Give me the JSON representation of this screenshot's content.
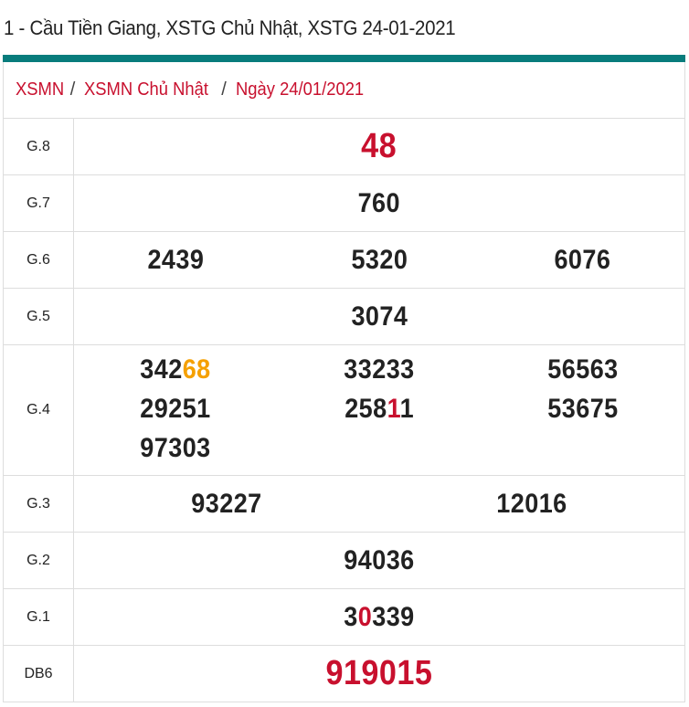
{
  "page_title": "1 - Cầu Tiền Giang, XSTG Chủ Nhật, XSTG 24-01-2021",
  "colors": {
    "accent_bar": "#087c7c",
    "red": "#c8102e",
    "orange": "#f5a000",
    "text": "#222222"
  },
  "breadcrumb": [
    {
      "label": "XSMN"
    },
    {
      "label": "XSMN Chủ Nhật"
    },
    {
      "label": "Ngày 24/01/2021"
    }
  ],
  "breadcrumb_separator": "/",
  "prizes": [
    {
      "label": "G.8",
      "style": "big-red",
      "columns": [
        [
          [
            {
              "text": "48",
              "color": "red"
            }
          ]
        ]
      ]
    },
    {
      "label": "G.7",
      "columns": [
        [
          [
            {
              "text": "760"
            }
          ]
        ]
      ]
    },
    {
      "label": "G.6",
      "columns": [
        [
          [
            {
              "text": "2439"
            }
          ]
        ],
        [
          [
            {
              "text": "5320"
            }
          ]
        ],
        [
          [
            {
              "text": "6076"
            }
          ]
        ]
      ]
    },
    {
      "label": "G.5",
      "columns": [
        [
          [
            {
              "text": "3074"
            }
          ]
        ]
      ]
    },
    {
      "label": "G.4",
      "columns": [
        [
          [
            {
              "text": "342"
            },
            {
              "text": "68",
              "color": "orange"
            }
          ],
          [
            {
              "text": "29251"
            }
          ],
          [
            {
              "text": "97303"
            }
          ]
        ],
        [
          [
            {
              "text": "33233"
            }
          ],
          [
            {
              "text": "258"
            },
            {
              "text": "1",
              "color": "red"
            },
            {
              "text": "1"
            }
          ]
        ],
        [
          [
            {
              "text": "56563"
            }
          ],
          [
            {
              "text": "53675"
            }
          ]
        ]
      ]
    },
    {
      "label": "G.3",
      "columns": [
        [
          [
            {
              "text": "93227"
            }
          ]
        ],
        [
          [
            {
              "text": "12016"
            }
          ]
        ]
      ]
    },
    {
      "label": "G.2",
      "columns": [
        [
          [
            {
              "text": "94036"
            }
          ]
        ]
      ]
    },
    {
      "label": "G.1",
      "columns": [
        [
          [
            {
              "text": "3"
            },
            {
              "text": "0",
              "color": "red"
            },
            {
              "text": "339"
            }
          ]
        ]
      ]
    },
    {
      "label": "DB6",
      "style": "big-red",
      "columns": [
        [
          [
            {
              "text": "919015",
              "color": "red"
            }
          ]
        ]
      ]
    }
  ]
}
